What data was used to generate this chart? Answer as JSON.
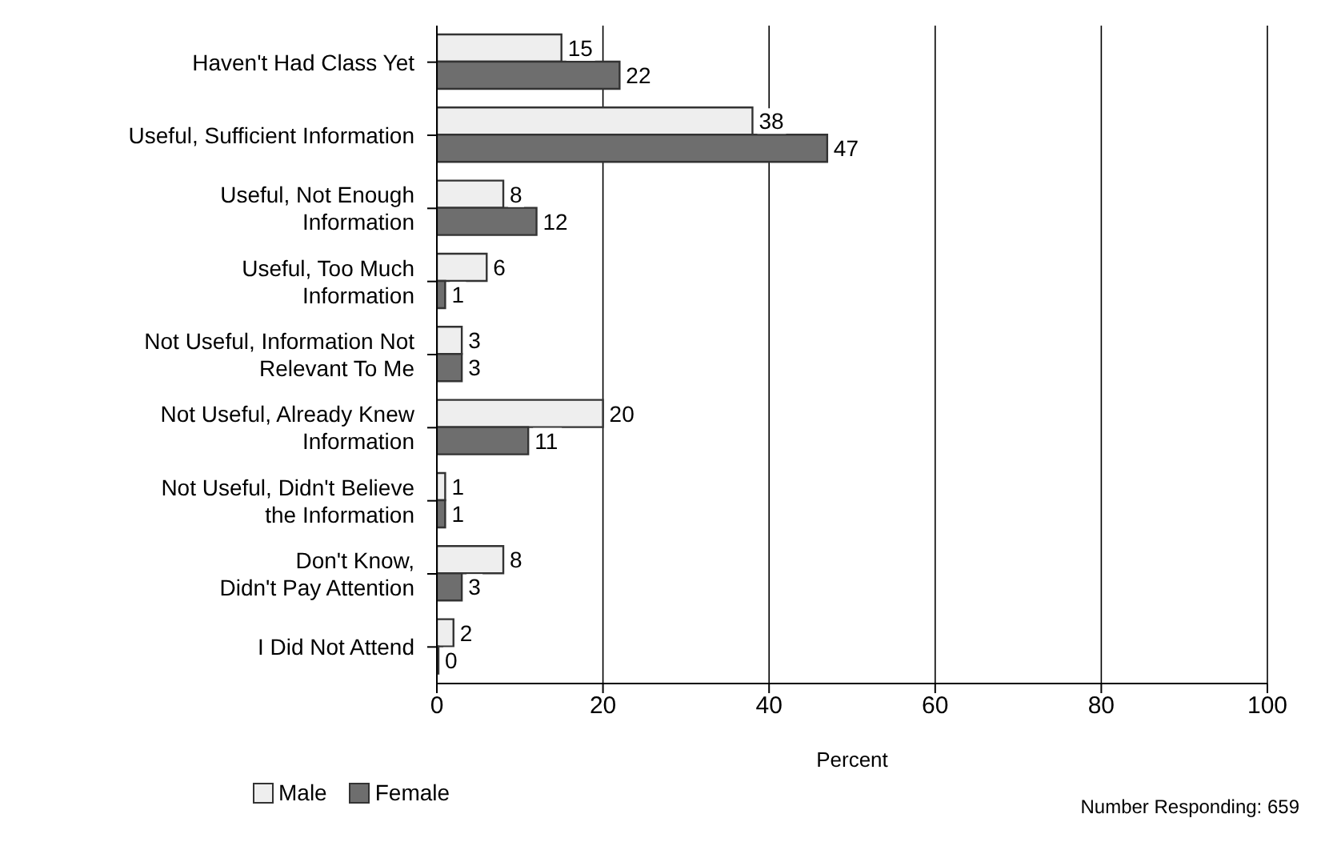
{
  "chart_data": {
    "type": "bar",
    "orientation": "horizontal",
    "xlabel": "Percent",
    "categories": [
      "Haven't Had Class Yet",
      "Useful, Sufficient Information",
      "Useful, Not Enough\nInformation",
      "Useful, Too Much\nInformation",
      "Not Useful, Information Not\nRelevant To Me",
      "Not Useful, Already Knew\nInformation",
      "Not Useful, Didn't Believe\nthe Information",
      "Don't Know,\nDidn't Pay Attention",
      "I Did Not Attend"
    ],
    "series": [
      {
        "name": "Male",
        "color": "#eeeeee",
        "values": [
          15,
          38,
          8,
          6,
          3,
          20,
          1,
          8,
          2
        ]
      },
      {
        "name": "Female",
        "color": "#6e6e6e",
        "values": [
          22,
          47,
          12,
          1,
          3,
          11,
          1,
          3,
          0
        ]
      }
    ],
    "xlim": [
      0,
      100
    ],
    "xticks": [
      0,
      20,
      40,
      60,
      80,
      100
    ],
    "grid": "x",
    "legend": "bottom left",
    "data_labels": true,
    "annotations": [
      "Number Responding:  659"
    ]
  }
}
